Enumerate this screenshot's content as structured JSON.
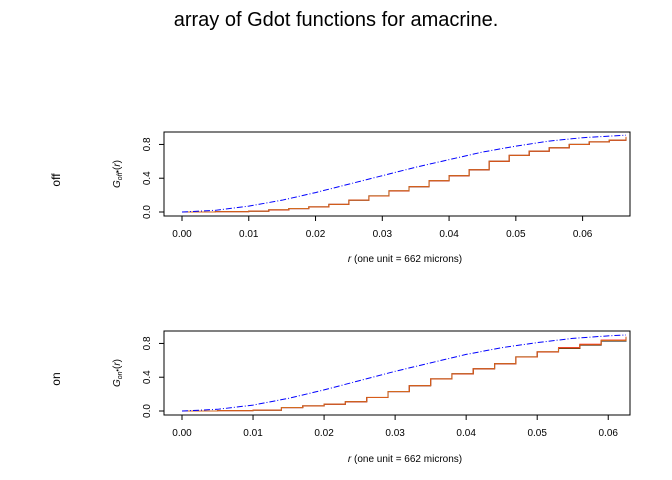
{
  "title": "array of Gdot functions for amacrine.",
  "colors": {
    "obs": "#000000",
    "trans": "#ff0000",
    "theo": "#0000ff",
    "border": "#d2691e"
  },
  "chart_data": [
    {
      "type": "line",
      "row_label": "off",
      "ylabel": "G_off•(r)",
      "ylabel_base": "G",
      "ylabel_sub": "off",
      "ylabel_sup": "•",
      "ylabel_arg": "(r)",
      "xlabel": "r (one unit = 662 microns)",
      "xlabel_var": "r",
      "xlabel_rest": " (one unit = 662 microns)",
      "xlim": [
        0,
        0.0665
      ],
      "ylim": [
        0,
        0.9
      ],
      "xticks": [
        "0.00",
        "0.01",
        "0.02",
        "0.03",
        "0.04",
        "0.05",
        "0.06"
      ],
      "yticks": [
        "0.0",
        "0.4",
        "0.8"
      ],
      "series": [
        {
          "key": "obs",
          "style": "step",
          "x": [
            0,
            0.005,
            0.01,
            0.013,
            0.016,
            0.019,
            0.022,
            0.025,
            0.028,
            0.031,
            0.034,
            0.037,
            0.04,
            0.043,
            0.046,
            0.049,
            0.052,
            0.055,
            0.058,
            0.061,
            0.064,
            0.0665
          ],
          "y": [
            0,
            0.005,
            0.01,
            0.025,
            0.04,
            0.06,
            0.09,
            0.14,
            0.19,
            0.25,
            0.3,
            0.37,
            0.43,
            0.5,
            0.6,
            0.67,
            0.72,
            0.76,
            0.8,
            0.83,
            0.85,
            0.88
          ]
        },
        {
          "key": "trans",
          "style": "step",
          "x": [
            0,
            0.005,
            0.01,
            0.013,
            0.016,
            0.019,
            0.022,
            0.025,
            0.028,
            0.031,
            0.034,
            0.037,
            0.04,
            0.043,
            0.046,
            0.049,
            0.052,
            0.055,
            0.058,
            0.061,
            0.064,
            0.0665
          ],
          "y": [
            0,
            0.005,
            0.01,
            0.025,
            0.04,
            0.06,
            0.09,
            0.14,
            0.19,
            0.25,
            0.3,
            0.37,
            0.43,
            0.5,
            0.6,
            0.67,
            0.72,
            0.76,
            0.8,
            0.83,
            0.85,
            0.89
          ]
        },
        {
          "key": "border",
          "style": "step",
          "x": [
            0,
            0.005,
            0.01,
            0.013,
            0.016,
            0.019,
            0.022,
            0.025,
            0.028,
            0.031,
            0.034,
            0.037,
            0.04,
            0.043,
            0.046,
            0.049,
            0.052,
            0.055,
            0.058,
            0.061,
            0.064,
            0.0665
          ],
          "y": [
            0,
            0.005,
            0.01,
            0.026,
            0.041,
            0.061,
            0.091,
            0.141,
            0.191,
            0.251,
            0.301,
            0.371,
            0.431,
            0.501,
            0.601,
            0.671,
            0.721,
            0.761,
            0.801,
            0.831,
            0.851,
            0.885
          ]
        },
        {
          "key": "theo",
          "style": "dashdot",
          "x": [
            0,
            0.005,
            0.01,
            0.015,
            0.02,
            0.025,
            0.03,
            0.035,
            0.04,
            0.045,
            0.05,
            0.055,
            0.06,
            0.0665
          ],
          "y": [
            0,
            0.02,
            0.07,
            0.14,
            0.23,
            0.33,
            0.43,
            0.53,
            0.62,
            0.71,
            0.78,
            0.84,
            0.88,
            0.91
          ]
        }
      ]
    },
    {
      "type": "line",
      "row_label": "on",
      "ylabel": "G_on•(r)",
      "ylabel_base": "G",
      "ylabel_sub": "on",
      "ylabel_sup": "•",
      "ylabel_arg": "(r)",
      "xlabel": "r (one unit = 662 microns)",
      "xlabel_var": "r",
      "xlabel_rest": " (one unit = 662 microns)",
      "xlim": [
        0,
        0.0625
      ],
      "ylim": [
        0,
        0.9
      ],
      "xticks": [
        "0.00",
        "0.01",
        "0.02",
        "0.03",
        "0.04",
        "0.05",
        "0.06"
      ],
      "yticks": [
        "0.0",
        "0.4",
        "0.8"
      ],
      "series": [
        {
          "key": "obs",
          "style": "step",
          "x": [
            0,
            0.005,
            0.01,
            0.014,
            0.017,
            0.02,
            0.023,
            0.026,
            0.029,
            0.032,
            0.035,
            0.038,
            0.041,
            0.044,
            0.047,
            0.05,
            0.053,
            0.056,
            0.059,
            0.0625
          ],
          "y": [
            0,
            0.005,
            0.01,
            0.04,
            0.06,
            0.08,
            0.11,
            0.16,
            0.23,
            0.3,
            0.38,
            0.44,
            0.5,
            0.56,
            0.64,
            0.7,
            0.74,
            0.78,
            0.83,
            0.87
          ]
        },
        {
          "key": "trans",
          "style": "step",
          "x": [
            0,
            0.005,
            0.01,
            0.014,
            0.017,
            0.02,
            0.023,
            0.026,
            0.029,
            0.032,
            0.035,
            0.038,
            0.041,
            0.044,
            0.047,
            0.05,
            0.053,
            0.056,
            0.059,
            0.0625
          ],
          "y": [
            0,
            0.005,
            0.01,
            0.04,
            0.06,
            0.08,
            0.11,
            0.16,
            0.23,
            0.3,
            0.38,
            0.44,
            0.5,
            0.56,
            0.64,
            0.7,
            0.75,
            0.79,
            0.84,
            0.88
          ]
        },
        {
          "key": "border",
          "style": "step",
          "x": [
            0,
            0.005,
            0.01,
            0.014,
            0.017,
            0.02,
            0.023,
            0.026,
            0.029,
            0.032,
            0.035,
            0.038,
            0.041,
            0.044,
            0.047,
            0.05,
            0.053,
            0.056,
            0.059,
            0.0625
          ],
          "y": [
            0,
            0.005,
            0.011,
            0.041,
            0.061,
            0.081,
            0.111,
            0.161,
            0.231,
            0.301,
            0.381,
            0.441,
            0.501,
            0.561,
            0.641,
            0.701,
            0.745,
            0.785,
            0.835,
            0.875
          ]
        },
        {
          "key": "theo",
          "style": "dashdot",
          "x": [
            0,
            0.005,
            0.01,
            0.015,
            0.02,
            0.025,
            0.03,
            0.035,
            0.04,
            0.045,
            0.05,
            0.055,
            0.06,
            0.0625
          ],
          "y": [
            0,
            0.02,
            0.07,
            0.15,
            0.25,
            0.36,
            0.47,
            0.57,
            0.67,
            0.75,
            0.81,
            0.86,
            0.89,
            0.9
          ]
        }
      ]
    }
  ]
}
